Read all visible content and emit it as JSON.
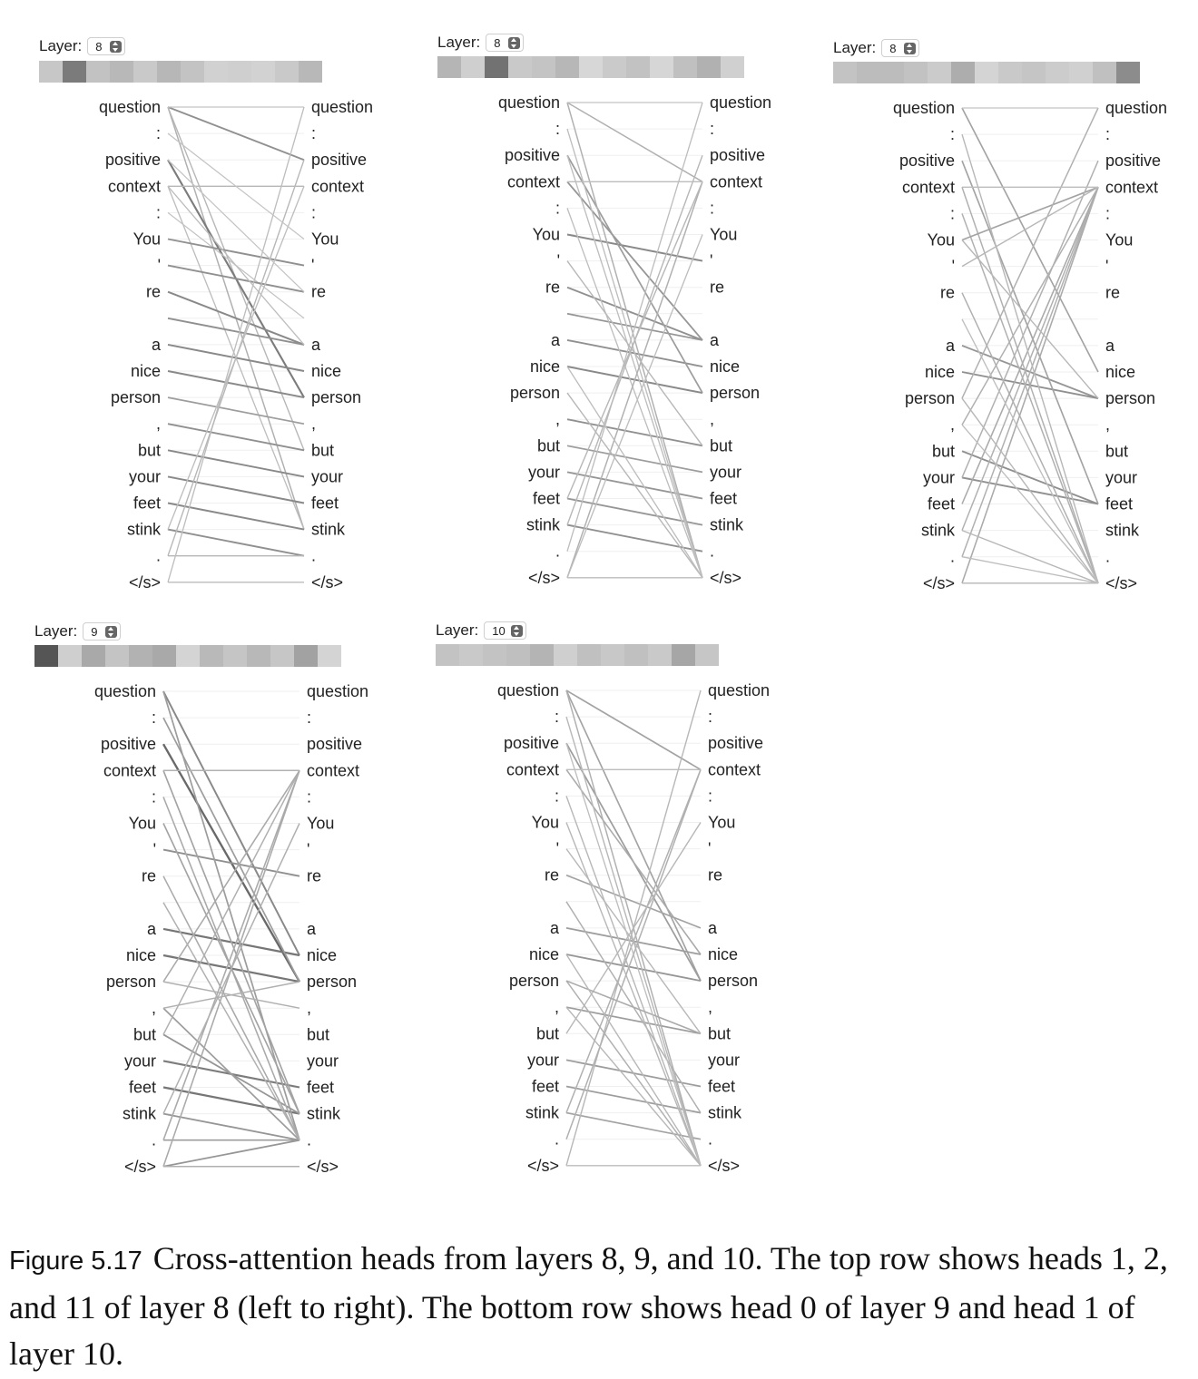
{
  "tokens": [
    "question",
    ":",
    "positive",
    "context",
    ":",
    "You",
    "'",
    "re",
    "",
    "a",
    "nice",
    "person",
    ",",
    "but",
    "your",
    "feet",
    "stink",
    ".",
    "</s>"
  ],
  "layer_label": "Layer:",
  "panels": [
    {
      "id": "p1",
      "layer": "8",
      "heads": [
        "#c7c7c7",
        "#7b7b7b",
        "#c2c2c2",
        "#b8b8b8",
        "#c9c9c9",
        "#b7b7b7",
        "#c3c3c3",
        "#d1d1d1",
        "#cfcfcf",
        "#d2d2d2",
        "#c9c9c9",
        "#b8b8b8"
      ],
      "links": [
        [
          0,
          2,
          0.55
        ],
        [
          0,
          16,
          0.3
        ],
        [
          0,
          13,
          0.25
        ],
        [
          2,
          11,
          0.7
        ],
        [
          3,
          3,
          0.25
        ],
        [
          3,
          16,
          0.2
        ],
        [
          4,
          8,
          0.15
        ],
        [
          5,
          6,
          0.55
        ],
        [
          6,
          7,
          0.55
        ],
        [
          7,
          9,
          0.6
        ],
        [
          8,
          9,
          0.55
        ],
        [
          9,
          10,
          0.6
        ],
        [
          10,
          11,
          0.6
        ],
        [
          11,
          12,
          0.45
        ],
        [
          12,
          13,
          0.55
        ],
        [
          13,
          14,
          0.6
        ],
        [
          14,
          15,
          0.6
        ],
        [
          15,
          16,
          0.6
        ],
        [
          16,
          17,
          0.55
        ],
        [
          17,
          17,
          0.25
        ],
        [
          18,
          18,
          0.2
        ],
        [
          18,
          0,
          0.2
        ],
        [
          17,
          2,
          0.25
        ],
        [
          16,
          3,
          0.2
        ],
        [
          1,
          5,
          0.15
        ],
        [
          2,
          7,
          0.15
        ],
        [
          0,
          0,
          0.15
        ],
        [
          3,
          9,
          0.2
        ]
      ]
    },
    {
      "id": "p2",
      "layer": "8",
      "heads": [
        "#b5b5b5",
        "#cfcfcf",
        "#727272",
        "#c9c9c9",
        "#c4c4c4",
        "#b7b7b7",
        "#d7d7d7",
        "#cacaca",
        "#c2c2c2",
        "#d6d6d6",
        "#c0c0c0",
        "#b1b1b1",
        "#d0d0d0"
      ],
      "links": [
        [
          5,
          6,
          0.6
        ],
        [
          7,
          9,
          0.55
        ],
        [
          8,
          9,
          0.5
        ],
        [
          9,
          10,
          0.55
        ],
        [
          10,
          11,
          0.6
        ],
        [
          12,
          13,
          0.55
        ],
        [
          13,
          14,
          0.45
        ],
        [
          14,
          15,
          0.5
        ],
        [
          15,
          16,
          0.5
        ],
        [
          16,
          17,
          0.55
        ],
        [
          3,
          9,
          0.5
        ],
        [
          2,
          11,
          0.45
        ],
        [
          0,
          18,
          0.3
        ],
        [
          0,
          3,
          0.3
        ],
        [
          1,
          18,
          0.2
        ],
        [
          2,
          18,
          0.2
        ],
        [
          4,
          18,
          0.2
        ],
        [
          18,
          3,
          0.3
        ],
        [
          17,
          0,
          0.2
        ],
        [
          16,
          2,
          0.25
        ],
        [
          18,
          5,
          0.2
        ],
        [
          15,
          3,
          0.25
        ],
        [
          3,
          3,
          0.2
        ],
        [
          0,
          0,
          0.15
        ],
        [
          11,
          18,
          0.25
        ],
        [
          10,
          18,
          0.2
        ],
        [
          6,
          13,
          0.25
        ],
        [
          18,
          18,
          0.2
        ]
      ]
    },
    {
      "id": "p3",
      "layer": "8",
      "heads": [
        "#c3c3c3",
        "#bcbcbc",
        "#bcbcbc",
        "#c2c2c2",
        "#cbcbcb",
        "#adadad",
        "#d4d4d4",
        "#c9c9c9",
        "#c5c5c5",
        "#cccccc",
        "#d0d0d0",
        "#c0c0c0",
        "#8c8c8c"
      ],
      "links": [
        [
          9,
          11,
          0.5
        ],
        [
          10,
          11,
          0.55
        ],
        [
          13,
          15,
          0.55
        ],
        [
          14,
          15,
          0.55
        ],
        [
          0,
          10,
          0.4
        ],
        [
          2,
          15,
          0.4
        ],
        [
          3,
          18,
          0.3
        ],
        [
          4,
          18,
          0.3
        ],
        [
          5,
          3,
          0.4
        ],
        [
          7,
          18,
          0.3
        ],
        [
          18,
          3,
          0.35
        ],
        [
          17,
          3,
          0.3
        ],
        [
          16,
          3,
          0.3
        ],
        [
          15,
          3,
          0.35
        ],
        [
          12,
          3,
          0.3
        ],
        [
          11,
          0,
          0.3
        ],
        [
          14,
          2,
          0.3
        ],
        [
          18,
          18,
          0.25
        ],
        [
          16,
          18,
          0.25
        ],
        [
          1,
          18,
          0.25
        ],
        [
          6,
          3,
          0.25
        ],
        [
          8,
          18,
          0.2
        ],
        [
          3,
          3,
          0.2
        ],
        [
          0,
          0,
          0.15
        ],
        [
          11,
          18,
          0.25
        ],
        [
          12,
          18,
          0.2
        ],
        [
          17,
          18,
          0.2
        ],
        [
          5,
          11,
          0.25
        ]
      ]
    },
    {
      "id": "p4",
      "layer": "9",
      "heads": [
        "#555555",
        "#cfcfcf",
        "#a9a9a9",
        "#c4c4c4",
        "#b2b2b2",
        "#a9a9a9",
        "#d4d4d4",
        "#b9b9b9",
        "#c5c5c5",
        "#b8b8b8",
        "#c6c6c6",
        "#a2a2a2",
        "#d4d4d4"
      ],
      "links": [
        [
          2,
          11,
          0.85
        ],
        [
          0,
          10,
          0.6
        ],
        [
          9,
          10,
          0.75
        ],
        [
          10,
          11,
          0.75
        ],
        [
          6,
          7,
          0.55
        ],
        [
          14,
          15,
          0.7
        ],
        [
          15,
          16,
          0.75
        ],
        [
          13,
          16,
          0.5
        ],
        [
          16,
          17,
          0.5
        ],
        [
          17,
          17,
          0.45
        ],
        [
          18,
          17,
          0.5
        ],
        [
          12,
          17,
          0.45
        ],
        [
          0,
          17,
          0.45
        ],
        [
          3,
          16,
          0.4
        ],
        [
          1,
          11,
          0.45
        ],
        [
          4,
          17,
          0.35
        ],
        [
          5,
          16,
          0.4
        ],
        [
          7,
          17,
          0.35
        ],
        [
          18,
          3,
          0.35
        ],
        [
          17,
          3,
          0.35
        ],
        [
          16,
          5,
          0.3
        ],
        [
          13,
          3,
          0.3
        ],
        [
          11,
          3,
          0.35
        ],
        [
          3,
          3,
          0.3
        ],
        [
          18,
          18,
          0.3
        ],
        [
          11,
          12,
          0.3
        ],
        [
          12,
          11,
          0.3
        ],
        [
          8,
          17,
          0.3
        ]
      ]
    },
    {
      "id": "p5",
      "layer": "10",
      "heads": [
        "#c3c3c3",
        "#c9c9c9",
        "#c3c3c3",
        "#bfbfbf",
        "#b4b4b4",
        "#cfcfcf",
        "#c0c0c0",
        "#c8c8c8",
        "#c0c0c0",
        "#c9c9c9",
        "#a6a6a6",
        "#c6c6c6"
      ],
      "links": [
        [
          0,
          3,
          0.4
        ],
        [
          0,
          11,
          0.4
        ],
        [
          2,
          11,
          0.45
        ],
        [
          3,
          10,
          0.35
        ],
        [
          7,
          9,
          0.4
        ],
        [
          9,
          10,
          0.45
        ],
        [
          10,
          11,
          0.5
        ],
        [
          12,
          13,
          0.45
        ],
        [
          14,
          15,
          0.45
        ],
        [
          15,
          16,
          0.45
        ],
        [
          16,
          17,
          0.4
        ],
        [
          8,
          16,
          0.3
        ],
        [
          1,
          18,
          0.25
        ],
        [
          0,
          18,
          0.3
        ],
        [
          4,
          18,
          0.25
        ],
        [
          5,
          18,
          0.25
        ],
        [
          18,
          0,
          0.25
        ],
        [
          17,
          3,
          0.3
        ],
        [
          16,
          3,
          0.3
        ],
        [
          13,
          5,
          0.25
        ],
        [
          11,
          18,
          0.3
        ],
        [
          11,
          13,
          0.35
        ],
        [
          18,
          18,
          0.2
        ],
        [
          10,
          18,
          0.25
        ],
        [
          3,
          3,
          0.2
        ],
        [
          6,
          13,
          0.25
        ],
        [
          12,
          18,
          0.25
        ],
        [
          2,
          18,
          0.2
        ]
      ]
    }
  ],
  "caption": {
    "label": "Figure 5.17",
    "text": "Cross-attention heads from layers 8, 9, and 10. The top row shows heads 1, 2, and 11 of layer 8 (left to right). The bottom row shows head 0 of layer 9 and head 1 of layer 10."
  }
}
